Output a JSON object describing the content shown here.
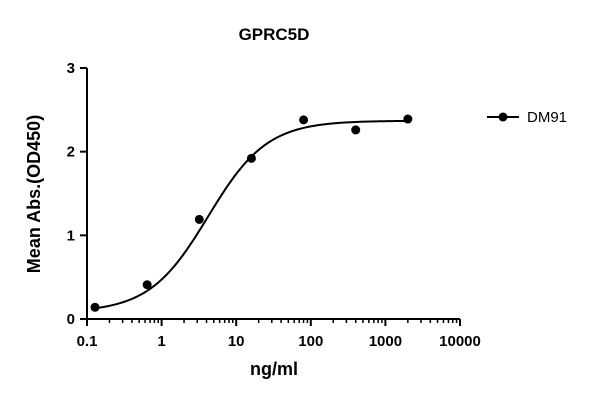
{
  "chart_data": {
    "type": "scatter",
    "title": "GPRC5D",
    "xlabel": "ng/ml",
    "ylabel": "Mean Abs.(OD450)",
    "x_scale": "log",
    "xlim": [
      0.1,
      10000
    ],
    "ylim": [
      0,
      3
    ],
    "x_ticks": [
      0.1,
      1,
      10,
      100,
      1000,
      10000
    ],
    "x_tick_labels": [
      "0.1",
      "1",
      "10",
      "100",
      "1000",
      "10000"
    ],
    "y_ticks": [
      0,
      1,
      2,
      3
    ],
    "y_tick_labels": [
      "0",
      "1",
      "2",
      "3"
    ],
    "grid": false,
    "legend_position": "right",
    "series": [
      {
        "name": "DM91",
        "color": "#000000",
        "marker": "circle",
        "x": [
          0.128,
          0.64,
          3.2,
          16,
          80,
          400,
          2000
        ],
        "y": [
          0.14,
          0.41,
          1.19,
          1.92,
          2.38,
          2.26,
          2.39
        ],
        "fit": {
          "model": "four-parameter logistic",
          "bottom": 0.08,
          "top": 2.37,
          "ec50": 4.2,
          "hill": 1.1
        }
      }
    ]
  }
}
